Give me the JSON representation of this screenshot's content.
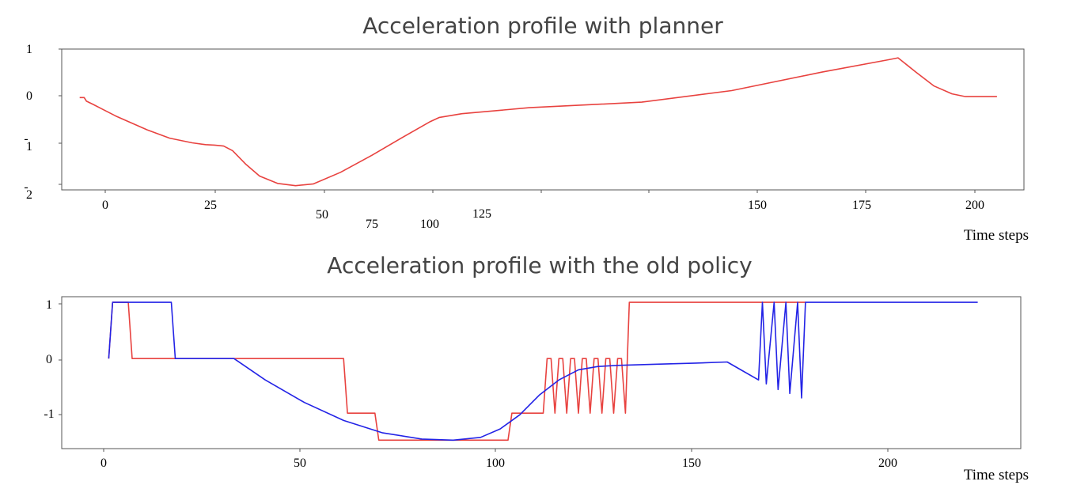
{
  "chart_data": [
    {
      "type": "line",
      "title": "Acceleration profile with planner",
      "xlabel": "Time steps",
      "ylabel": "",
      "xlim": [
        -4,
        210
      ],
      "ylim": [
        -2.0,
        1.05
      ],
      "x_tick_labels": [
        "0",
        "25",
        "50",
        "75",
        "100",
        "125",
        "150",
        "175",
        "200"
      ],
      "y_tick_labels": [
        "1",
        "0",
        "-\n1",
        "-\n2"
      ],
      "grid": false,
      "series": [
        {
          "color": "#e8423f",
          "points": [
            [
              0,
              0
            ],
            [
              1,
              0
            ],
            [
              1.5,
              -0.08
            ],
            [
              3,
              -0.15
            ],
            [
              8,
              -0.4
            ],
            [
              15,
              -0.7
            ],
            [
              20,
              -0.88
            ],
            [
              25,
              -0.98
            ],
            [
              28,
              -1.02
            ],
            [
              30,
              -1.03
            ],
            [
              32,
              -1.05
            ],
            [
              34,
              -1.15
            ],
            [
              37,
              -1.45
            ],
            [
              40,
              -1.7
            ],
            [
              44,
              -1.86
            ],
            [
              48,
              -1.91
            ],
            [
              52,
              -1.87
            ],
            [
              58,
              -1.62
            ],
            [
              65,
              -1.25
            ],
            [
              72,
              -0.85
            ],
            [
              78,
              -0.52
            ],
            [
              80,
              -0.43
            ],
            [
              85,
              -0.35
            ],
            [
              100,
              -0.22
            ],
            [
              125,
              -0.1
            ],
            [
              145,
              0.15
            ],
            [
              165,
              0.55
            ],
            [
              180,
              0.82
            ],
            [
              182,
              0.86
            ],
            [
              186,
              0.55
            ],
            [
              190,
              0.25
            ],
            [
              194,
              0.08
            ],
            [
              197,
              0.02
            ],
            [
              204,
              0.02
            ]
          ]
        }
      ]
    },
    {
      "type": "line",
      "title": "Acceleration profile with the old policy",
      "xlabel": "Time steps",
      "ylabel": "",
      "xlim": [
        -12,
        233
      ],
      "ylim": [
        -1.6,
        1.1
      ],
      "x_tick_labels": [
        "0",
        "50",
        "100",
        "150",
        "200"
      ],
      "y_tick_labels": [
        "1",
        "0",
        "-1"
      ],
      "grid": false,
      "series": [
        {
          "color": "#e8423f",
          "points": [
            [
              0,
              0
            ],
            [
              1,
              1
            ],
            [
              5,
              1
            ],
            [
              6,
              0
            ],
            [
              60,
              0
            ],
            [
              61,
              -0.97
            ],
            [
              68,
              -0.97
            ],
            [
              69,
              -1.45
            ],
            [
              102,
              -1.45
            ],
            [
              103,
              -0.97
            ],
            [
              111,
              -0.97
            ],
            [
              112,
              0
            ],
            [
              113,
              0
            ],
            [
              114,
              -0.97
            ],
            [
              115,
              0
            ],
            [
              116,
              0
            ],
            [
              117,
              -0.97
            ],
            [
              118,
              0
            ],
            [
              119,
              0
            ],
            [
              120,
              -0.97
            ],
            [
              121,
              0
            ],
            [
              122,
              0
            ],
            [
              123,
              -0.97
            ],
            [
              124,
              0
            ],
            [
              125,
              0
            ],
            [
              126,
              -0.97
            ],
            [
              127,
              0
            ],
            [
              128,
              0
            ],
            [
              129,
              -0.97
            ],
            [
              130,
              0
            ],
            [
              131,
              0
            ],
            [
              132,
              -0.97
            ],
            [
              133,
              1
            ],
            [
              165,
              1
            ],
            [
              166,
              1
            ],
            [
              175,
              1
            ],
            [
              176,
              1
            ],
            [
              178,
              1
            ]
          ]
        },
        {
          "color": "#2323e6",
          "points": [
            [
              0,
              0
            ],
            [
              1,
              1
            ],
            [
              16,
              1
            ],
            [
              17,
              0
            ],
            [
              32,
              0
            ],
            [
              40,
              -0.38
            ],
            [
              50,
              -0.78
            ],
            [
              60,
              -1.1
            ],
            [
              70,
              -1.32
            ],
            [
              80,
              -1.43
            ],
            [
              88,
              -1.45
            ],
            [
              95,
              -1.4
            ],
            [
              100,
              -1.25
            ],
            [
              105,
              -1.0
            ],
            [
              110,
              -0.65
            ],
            [
              115,
              -0.38
            ],
            [
              120,
              -0.2
            ],
            [
              125,
              -0.14
            ],
            [
              130,
              -0.12
            ],
            [
              140,
              -0.1
            ],
            [
              150,
              -0.08
            ],
            [
              158,
              -0.06
            ],
            [
              161,
              -0.18
            ],
            [
              166,
              -0.38
            ],
            [
              167,
              1
            ],
            [
              168,
              -0.45
            ],
            [
              170,
              1
            ],
            [
              171,
              -0.55
            ],
            [
              173,
              1
            ],
            [
              174,
              -0.62
            ],
            [
              176,
              1
            ],
            [
              177,
              -0.7
            ],
            [
              178,
              1
            ],
            [
              222,
              1
            ]
          ]
        }
      ]
    }
  ]
}
